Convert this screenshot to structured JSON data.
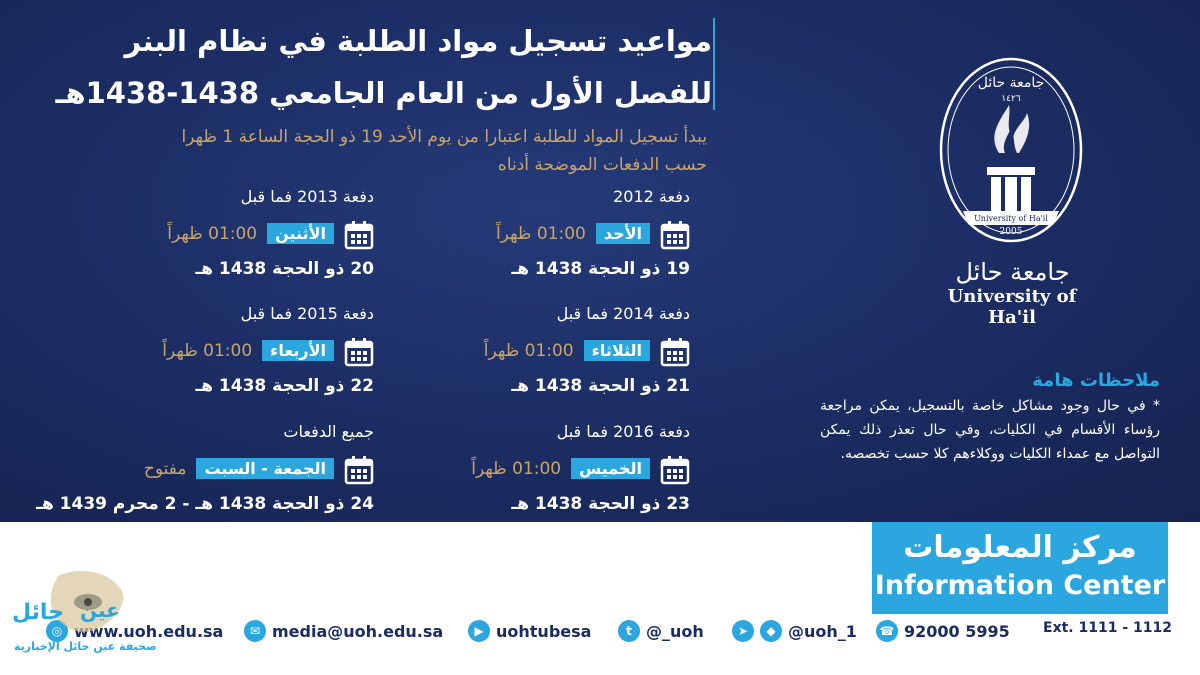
{
  "title": {
    "line1": "مواعيد تسجيل مواد الطلبة في نظام البنر",
    "line2": "للفصل الأول من العام الجامعي 1438-1438هـ"
  },
  "intro": {
    "line1": "يبدأ تسجيل المواد للطلبة اعتبارا من يوم الأحد 19 ذو الحجة الساعة 1 ظهرا",
    "line2": "حسب الدفعات الموضحة أدناه"
  },
  "schedule": [
    {
      "batch": "دفعة 2012",
      "day": "الأحد",
      "time": "01:00 ظهراً",
      "date": "19 ذو الحجة 1438 هـ"
    },
    {
      "batch": "دفعة 2013 فما قبل",
      "day": "الأثنين",
      "time": "01:00 ظهراً",
      "date": "20 ذو الحجة 1438 هـ"
    },
    {
      "batch": "دفعة 2014 فما قبل",
      "day": "الثلاثاء",
      "time": "01:00 ظهراً",
      "date": "21 ذو الحجة 1438 هـ"
    },
    {
      "batch": "دفعة 2015 فما قبل",
      "day": "الأربعاء",
      "time": "01:00 ظهراً",
      "date": "22 ذو الحجة 1438 هـ"
    },
    {
      "batch": "دفعة 2016 فما قبل",
      "day": "الخميس",
      "time": "01:00 ظهراً",
      "date": "23 ذو الحجة 1438 هـ"
    },
    {
      "batch": "جميع الدفعات",
      "day": "الجمعة - السبت",
      "time": "مفتوح",
      "date": "24 ذو الحجة 1438 هـ - 2 محرم 1439 هـ"
    }
  ],
  "logo": {
    "arabic_ring": "جامعة حائل",
    "hijri_year": "١٤٢٦",
    "ribbon": "University of Ha'il",
    "year": "2005",
    "name_ar": "جامعة حائل",
    "name_en": "University of Ha'il"
  },
  "notes": {
    "heading": "ملاحظات هامة",
    "body": "* في حال وجود مشاكل خاصة بالتسجيل، يمكن مراجعة رؤساء الأقسام في الكليات، وفي حال تعذر ذلك يمكن التواصل مع عمداء الكليات ووكلاءهم كلا حسب تخصصه."
  },
  "info_center": {
    "arabic": "مركز المعلومات",
    "english": "Information Center"
  },
  "contacts": {
    "website": "www.uoh.edu.sa",
    "email": "media@uoh.edu.sa",
    "youtube": "uohtubesa",
    "twitter": "@_uoh",
    "social": "@uoh_1",
    "phone": "92000 5995",
    "ext": "Ext. 1111 - 1112"
  },
  "watermark": {
    "name_1": "عين",
    "name_2": "حائل",
    "subtitle": "صحيفة عين حائل الإخبارية"
  },
  "colors": {
    "navy": "#1b2c62",
    "accent_blue": "#2ba6de",
    "gold": "#c9a46a"
  }
}
